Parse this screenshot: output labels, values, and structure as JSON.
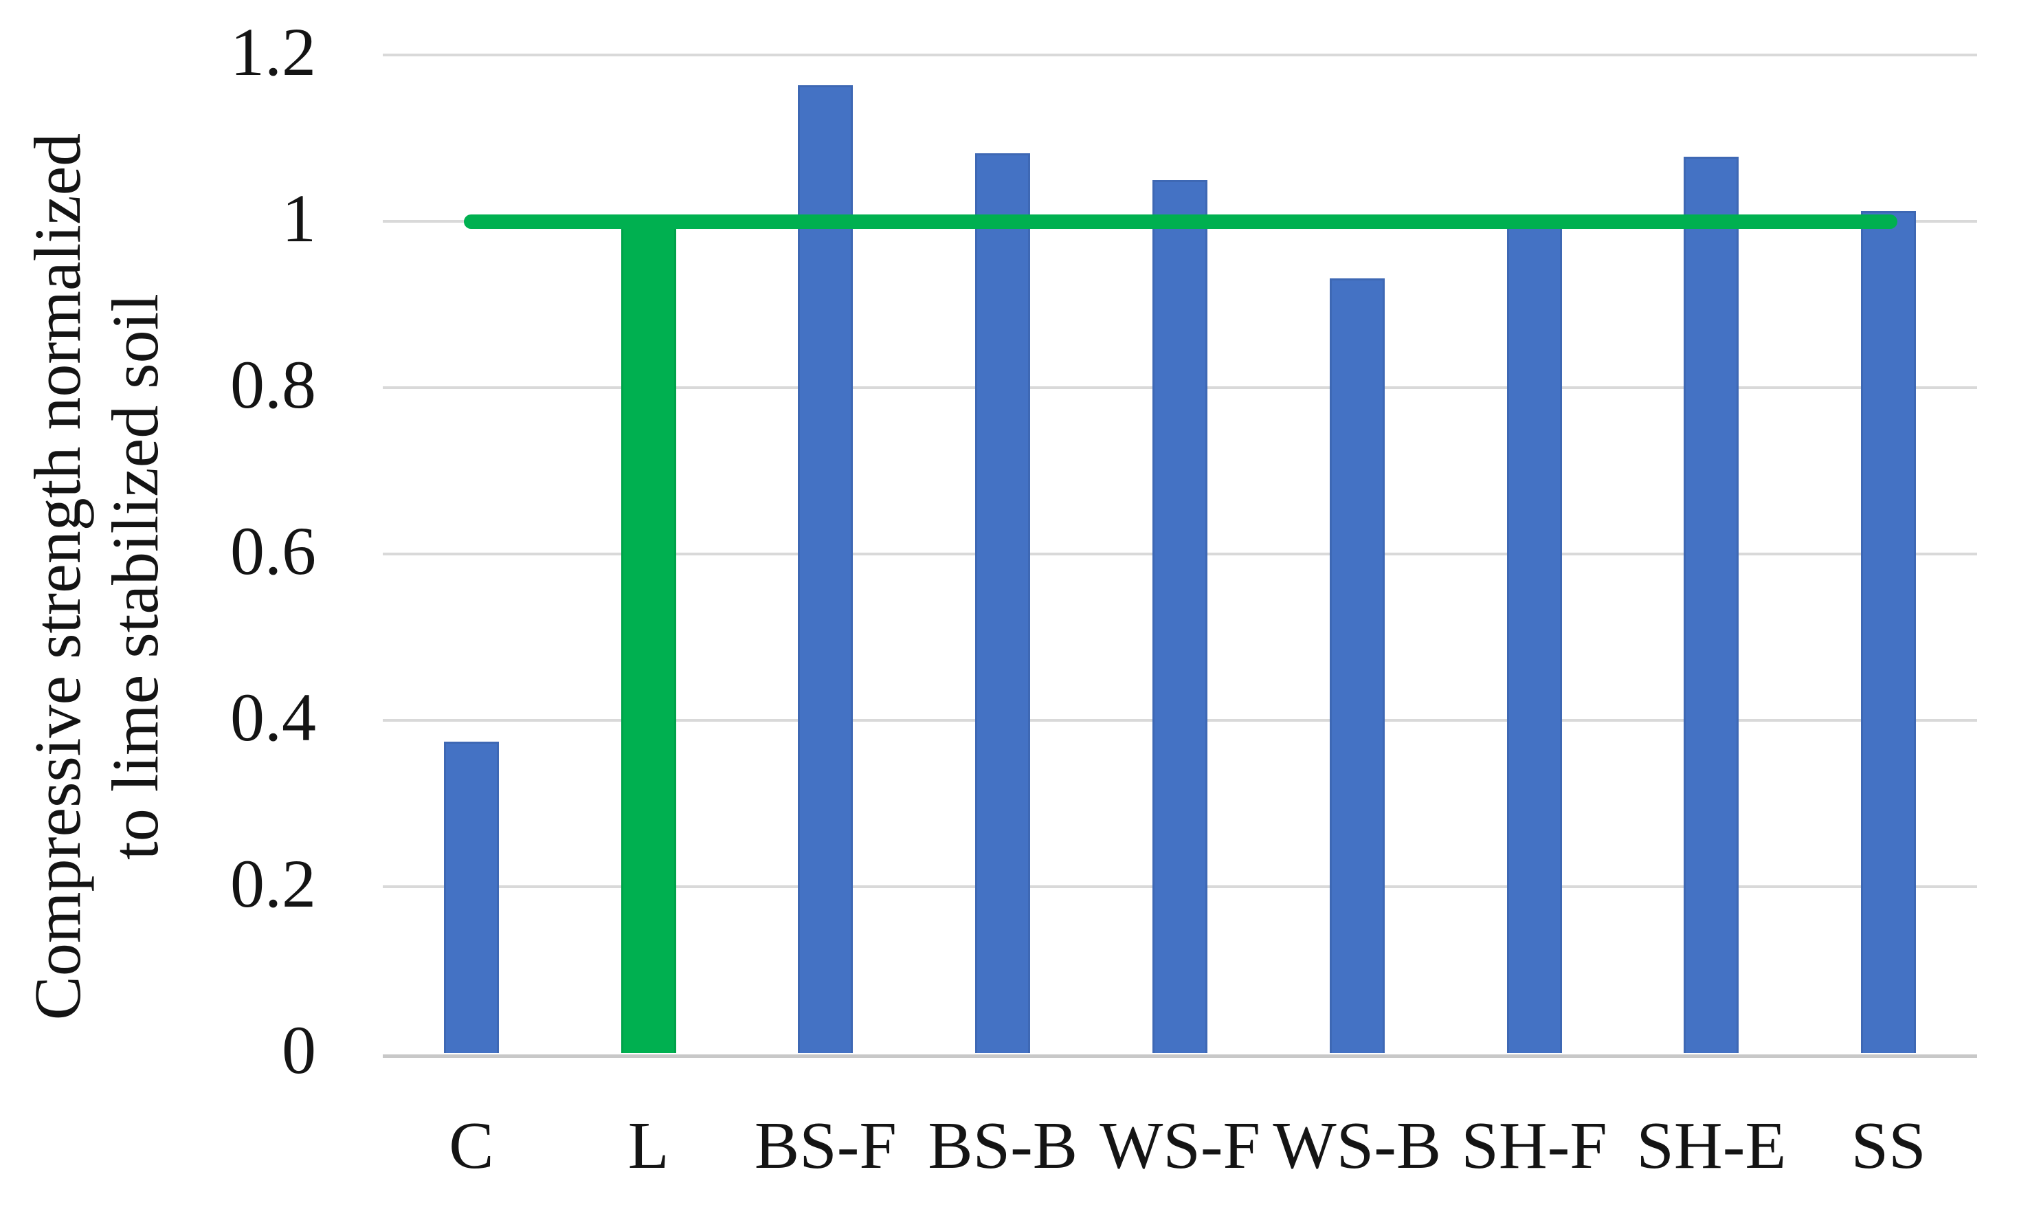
{
  "chart_data": {
    "type": "bar",
    "title": "",
    "ylabel_lines": [
      "Compressive strength normalized",
      "to lime stabilized soil"
    ],
    "xlabel": "",
    "categories": [
      "C",
      "L",
      "BS-F",
      "BS-B",
      "WS-F",
      "WS-B",
      "SH-F",
      "SH-E",
      "SS"
    ],
    "values": [
      0.374,
      1.0,
      1.164,
      1.082,
      1.05,
      0.931,
      0.993,
      1.078,
      1.012
    ],
    "bar_colors": [
      "#4472C4",
      "#00B050",
      "#4472C4",
      "#4472C4",
      "#4472C4",
      "#4472C4",
      "#4472C4",
      "#4472C4",
      "#4472C4"
    ],
    "bar_border_colors": [
      "#3E68B4",
      "#00A24A",
      "#3E68B4",
      "#3E68B4",
      "#3E68B4",
      "#3E68B4",
      "#3E68B4",
      "#3E68B4",
      "#3E68B4"
    ],
    "highlight_category": "L",
    "yticks": [
      0,
      0.2,
      0.4,
      0.6,
      0.8,
      1,
      1.2
    ],
    "ytick_labels": [
      "0",
      "0.2",
      "0.4",
      "0.6",
      "0.8",
      "1",
      "1.2"
    ],
    "ylim": [
      0,
      1.2
    ],
    "grid": true,
    "legend": "none",
    "reference_line": {
      "value": 1.0,
      "color": "#00B050",
      "x_start_frac": 0.051,
      "x_end_frac": 0.95
    },
    "colors": {
      "bar_blue": "#4472C4",
      "bar_green": "#00B050",
      "gridline": "#d9d9d9",
      "axis_line": "#c8c8c8",
      "text": "#141414"
    }
  }
}
